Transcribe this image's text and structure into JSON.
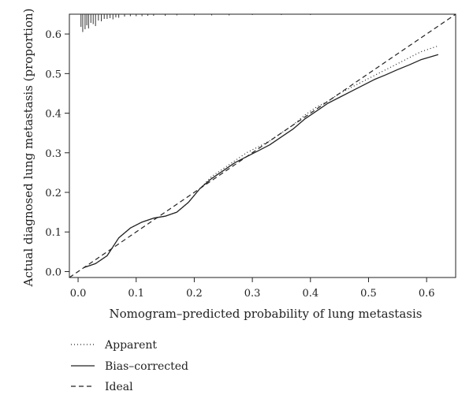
{
  "chart_data": {
    "type": "line",
    "title": "",
    "xlabel": "Nomogram–predicted probability of lung metastasis",
    "ylabel": "Actual diagnosed lung metastasis (proportion)",
    "xlim": [
      -0.015,
      0.65
    ],
    "ylim": [
      -0.015,
      0.65
    ],
    "x_ticks": [
      0.0,
      0.1,
      0.2,
      0.3,
      0.4,
      0.5,
      0.6
    ],
    "x_tick_labels": [
      "0.0",
      "0.1",
      "0.2",
      "0.3",
      "0.4",
      "0.5",
      "0.6"
    ],
    "y_ticks": [
      0.0,
      0.1,
      0.2,
      0.3,
      0.4,
      0.5,
      0.6
    ],
    "y_tick_labels": [
      "0.0",
      "0.1",
      "0.2",
      "0.3",
      "0.4",
      "0.5",
      "0.6"
    ],
    "grid": false,
    "legend_position": "below",
    "series": [
      {
        "name": "Apparent",
        "style": "dotted",
        "x": [
          0.01,
          0.03,
          0.05,
          0.07,
          0.09,
          0.11,
          0.13,
          0.15,
          0.17,
          0.19,
          0.21,
          0.23,
          0.25,
          0.27,
          0.29,
          0.31,
          0.33,
          0.35,
          0.37,
          0.39,
          0.41,
          0.43,
          0.45,
          0.47,
          0.49,
          0.51,
          0.53,
          0.55,
          0.57,
          0.59,
          0.62
        ],
        "y": [
          0.01,
          0.02,
          0.04,
          0.085,
          0.11,
          0.125,
          0.135,
          0.14,
          0.15,
          0.175,
          0.21,
          0.24,
          0.26,
          0.28,
          0.3,
          0.315,
          0.33,
          0.35,
          0.37,
          0.395,
          0.415,
          0.43,
          0.45,
          0.465,
          0.48,
          0.495,
          0.51,
          0.525,
          0.54,
          0.555,
          0.57
        ]
      },
      {
        "name": "Bias–corrected",
        "style": "solid",
        "x": [
          0.01,
          0.03,
          0.05,
          0.07,
          0.09,
          0.11,
          0.13,
          0.15,
          0.17,
          0.19,
          0.21,
          0.23,
          0.25,
          0.27,
          0.29,
          0.31,
          0.33,
          0.35,
          0.37,
          0.39,
          0.41,
          0.43,
          0.45,
          0.47,
          0.49,
          0.51,
          0.53,
          0.55,
          0.57,
          0.59,
          0.62
        ],
        "y": [
          0.01,
          0.02,
          0.04,
          0.085,
          0.11,
          0.125,
          0.135,
          0.14,
          0.15,
          0.175,
          0.21,
          0.235,
          0.255,
          0.275,
          0.29,
          0.305,
          0.32,
          0.34,
          0.36,
          0.385,
          0.405,
          0.425,
          0.44,
          0.455,
          0.47,
          0.485,
          0.497,
          0.51,
          0.522,
          0.535,
          0.548
        ]
      },
      {
        "name": "Ideal",
        "style": "dashed",
        "x": [
          -0.015,
          0.65
        ],
        "y": [
          -0.015,
          0.65
        ]
      }
    ],
    "rug": {
      "x": [
        0.005,
        0.008,
        0.012,
        0.015,
        0.018,
        0.022,
        0.026,
        0.03,
        0.035,
        0.04,
        0.045,
        0.05,
        0.055,
        0.06,
        0.065,
        0.07,
        0.08,
        0.09,
        0.1,
        0.11,
        0.12,
        0.13,
        0.15,
        0.17,
        0.2,
        0.23,
        0.26,
        0.3,
        0.35,
        0.4
      ],
      "height": [
        0.032,
        0.045,
        0.038,
        0.028,
        0.036,
        0.022,
        0.025,
        0.03,
        0.016,
        0.018,
        0.012,
        0.012,
        0.01,
        0.013,
        0.008,
        0.009,
        0.006,
        0.005,
        0.005,
        0.005,
        0.004,
        0.004,
        0.004,
        0.003,
        0.003,
        0.003,
        0.003,
        0.002,
        0.002,
        0.002
      ]
    }
  }
}
